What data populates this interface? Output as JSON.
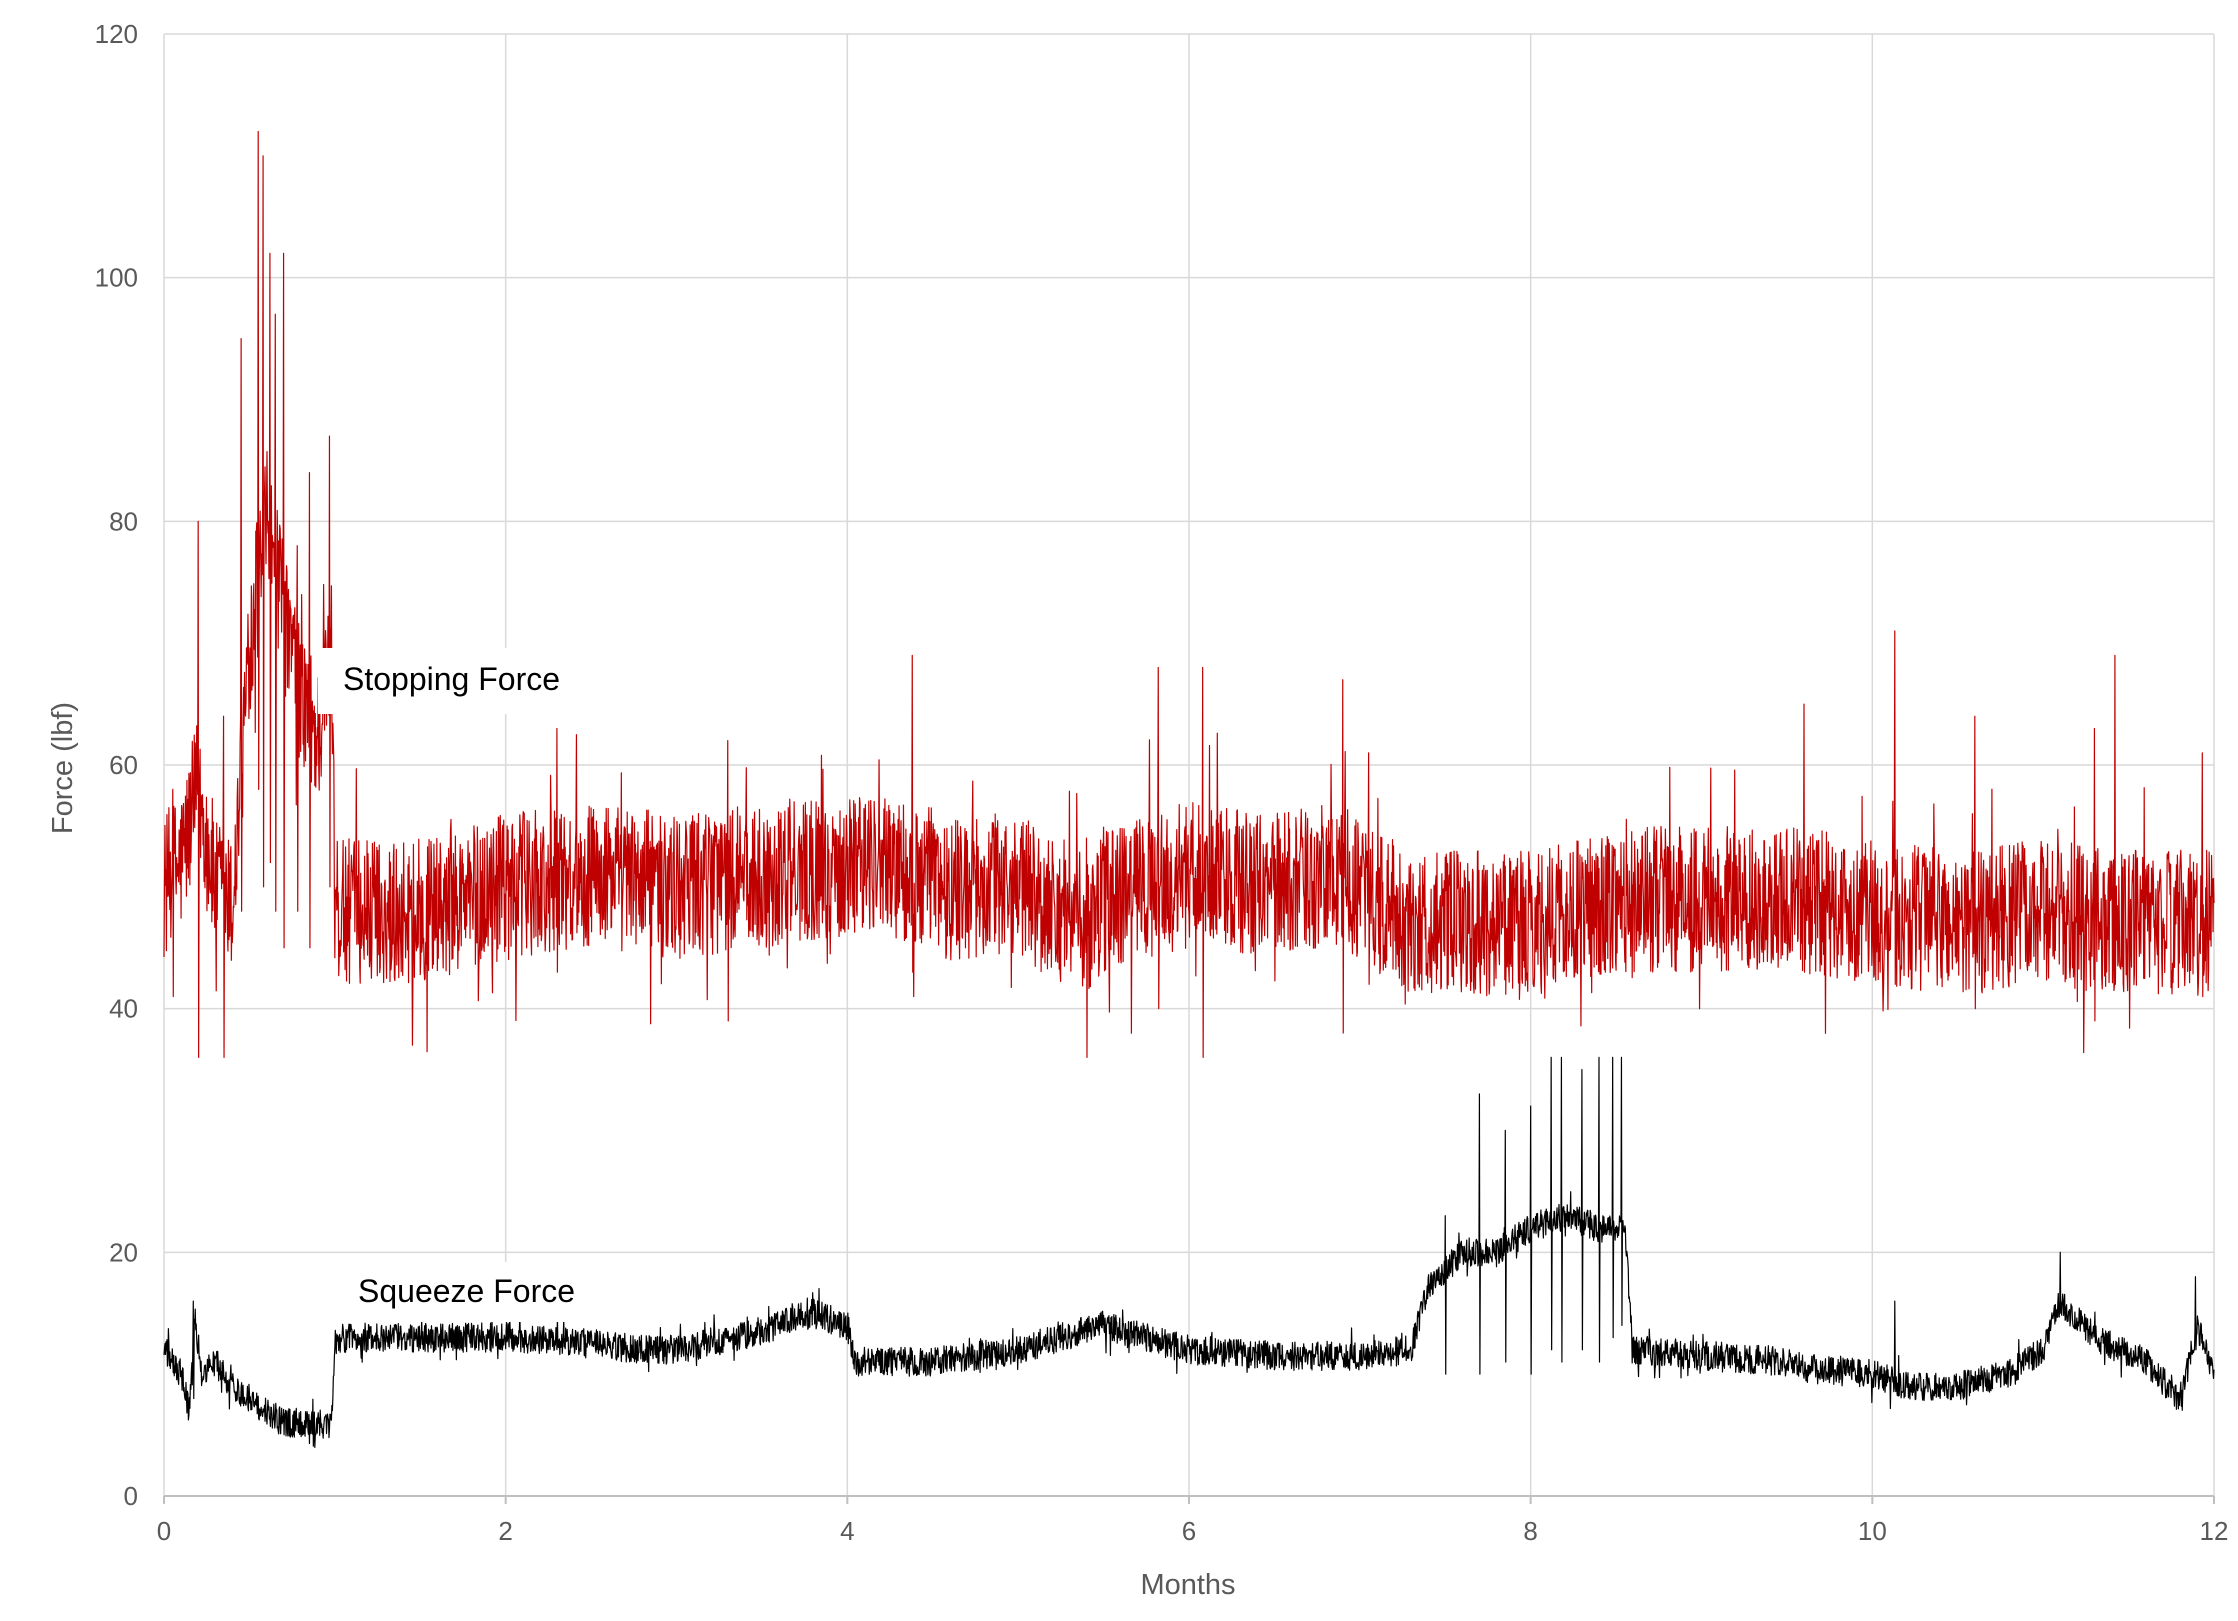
{
  "chart_data": {
    "type": "line",
    "title": "",
    "xlabel": "Months",
    "ylabel": "Force (lbf)",
    "xlim": [
      0,
      12
    ],
    "ylim": [
      0,
      120
    ],
    "x_ticks": [
      "0",
      "2",
      "4",
      "6",
      "8",
      "10",
      "12"
    ],
    "y_ticks": [
      "0",
      "20",
      "40",
      "60",
      "80",
      "100",
      "120"
    ],
    "grid": true,
    "legend": "none",
    "annotations": [
      "Stopping Force",
      "Squeeze Force"
    ],
    "series": [
      {
        "name": "Stopping Force",
        "color": "#c00000",
        "x": [
          0,
          0.1,
          0.2,
          0.3,
          0.4,
          0.5,
          0.55,
          0.6,
          0.7,
          0.8,
          0.9,
          0.98,
          1.0,
          1.2,
          1.5,
          2.0,
          2.5,
          3.0,
          3.5,
          4.0,
          4.2,
          4.4,
          4.6,
          5.0,
          5.4,
          5.5,
          6.0,
          6.5,
          6.8,
          7.0,
          7.3,
          7.6,
          8.0,
          8.5,
          9.0,
          9.5,
          10.0,
          10.5,
          11.0,
          11.5,
          12.0
        ],
        "y": [
          50,
          52,
          58,
          50,
          48,
          70,
          75,
          80,
          72,
          66,
          62,
          70,
          48,
          48,
          48,
          50,
          51,
          50,
          51,
          52,
          52,
          51,
          50,
          50,
          47,
          49,
          51,
          50,
          51,
          50,
          47,
          47,
          47,
          49,
          49,
          49,
          48,
          47,
          48,
          47,
          47
        ],
        "noise": 6,
        "peaks": [
          {
            "x": 0.05,
            "min": 41,
            "max": 58
          },
          {
            "x": 0.2,
            "min": 36,
            "max": 80
          },
          {
            "x": 0.35,
            "min": 36,
            "max": 64
          },
          {
            "x": 0.45,
            "min": 48,
            "max": 95
          },
          {
            "x": 0.55,
            "min": 58,
            "max": 112
          },
          {
            "x": 0.58,
            "min": 50,
            "max": 110
          },
          {
            "x": 0.62,
            "min": 52,
            "max": 102
          },
          {
            "x": 0.65,
            "min": 48,
            "max": 97
          },
          {
            "x": 0.7,
            "min": 45,
            "max": 102
          },
          {
            "x": 0.78,
            "min": 48,
            "max": 78
          },
          {
            "x": 0.85,
            "min": 45,
            "max": 84
          },
          {
            "x": 0.97,
            "min": 50,
            "max": 87
          },
          {
            "x": 2.3,
            "min": 43,
            "max": 63
          },
          {
            "x": 3.3,
            "min": 39,
            "max": 62
          },
          {
            "x": 4.38,
            "min": 43,
            "max": 69
          },
          {
            "x": 5.4,
            "min": 36,
            "max": 54
          },
          {
            "x": 5.82,
            "min": 40,
            "max": 68
          },
          {
            "x": 6.08,
            "min": 36,
            "max": 68
          },
          {
            "x": 6.9,
            "min": 38,
            "max": 67
          },
          {
            "x": 7.05,
            "min": 42,
            "max": 61
          },
          {
            "x": 9.6,
            "min": 43,
            "max": 65
          },
          {
            "x": 10.13,
            "min": 42,
            "max": 71
          },
          {
            "x": 10.6,
            "min": 40,
            "max": 64
          },
          {
            "x": 11.3,
            "min": 39,
            "max": 63
          },
          {
            "x": 11.42,
            "min": 42,
            "max": 69
          },
          {
            "x": 11.93,
            "min": 41,
            "max": 61
          }
        ]
      },
      {
        "name": "Squeeze Force",
        "color": "#000000",
        "x": [
          0,
          0.1,
          0.15,
          0.18,
          0.22,
          0.3,
          0.4,
          0.5,
          0.6,
          0.7,
          0.8,
          0.9,
          0.98,
          1.0,
          1.5,
          2.0,
          2.5,
          2.8,
          3.0,
          3.5,
          3.8,
          4.0,
          4.05,
          4.5,
          5.0,
          5.5,
          6.0,
          6.5,
          7.0,
          7.3,
          7.4,
          7.6,
          7.8,
          8.0,
          8.2,
          8.4,
          8.55,
          8.6,
          9.0,
          9.5,
          9.6,
          10.0,
          10.2,
          10.5,
          10.8,
          11.0,
          11.1,
          11.3,
          11.6,
          11.8,
          11.9,
          12.0
        ],
        "y": [
          12,
          10,
          7,
          15,
          10,
          11,
          9,
          8,
          7,
          6,
          6,
          6,
          5.5,
          13,
          13,
          13,
          12.5,
          12,
          12,
          13.5,
          15,
          14,
          11,
          11,
          12,
          14,
          12,
          11.5,
          11.5,
          12,
          17,
          20,
          20,
          22,
          23,
          22,
          22,
          12,
          11.5,
          11,
          10.5,
          10,
          9,
          9,
          10,
          12,
          16,
          13,
          11,
          8,
          14,
          10
        ],
        "noise": 1.2,
        "peaks": [
          {
            "x": 0.17,
            "min": 8,
            "max": 16
          },
          {
            "x": 7.5,
            "min": 10,
            "max": 23
          },
          {
            "x": 7.7,
            "min": 10,
            "max": 33
          },
          {
            "x": 7.85,
            "min": 11,
            "max": 30
          },
          {
            "x": 8.0,
            "min": 10,
            "max": 32
          },
          {
            "x": 8.12,
            "min": 12,
            "max": 36
          },
          {
            "x": 8.18,
            "min": 11,
            "max": 36
          },
          {
            "x": 8.3,
            "min": 12,
            "max": 35
          },
          {
            "x": 8.4,
            "min": 11,
            "max": 36
          },
          {
            "x": 8.48,
            "min": 13,
            "max": 36
          },
          {
            "x": 8.53,
            "min": 14,
            "max": 36
          },
          {
            "x": 10.13,
            "min": 10,
            "max": 16
          },
          {
            "x": 11.1,
            "min": 15,
            "max": 20
          },
          {
            "x": 11.89,
            "min": 12,
            "max": 18
          }
        ]
      }
    ]
  }
}
